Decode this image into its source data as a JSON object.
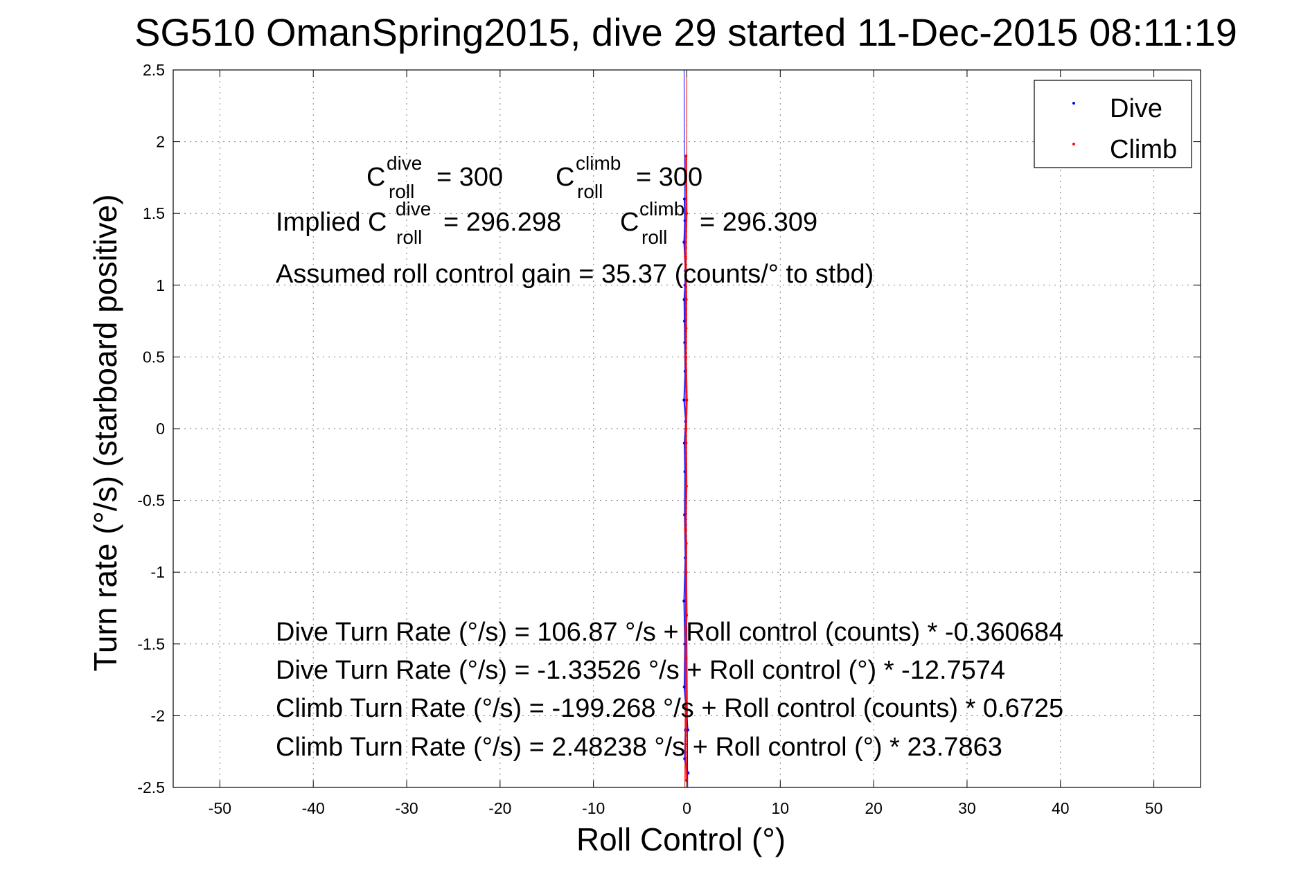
{
  "chart_data": {
    "type": "scatter",
    "title": "SG510 OmanSpring2015, dive 29 started 11-Dec-2015 08:11:19",
    "xlabel": "Roll Control (°)",
    "ylabel": "Turn rate (°/s) (starboard positive)",
    "xlim": [
      -55,
      55
    ],
    "ylim": [
      -2.5,
      2.5
    ],
    "xticks": [
      -50,
      -40,
      -30,
      -20,
      -10,
      0,
      10,
      20,
      30,
      40,
      50
    ],
    "yticks": [
      -2.5,
      -2,
      -1.5,
      -1,
      -0.5,
      0,
      0.5,
      1,
      1.5,
      2,
      2.5
    ],
    "xtick_labels": [
      "-50",
      "-40",
      "-30",
      "-20",
      "-10",
      "0",
      "10",
      "20",
      "30",
      "40",
      "50"
    ],
    "ytick_labels": [
      "-2.5",
      "-2",
      "-1.5",
      "-1",
      "-0.5",
      "0",
      "0.5",
      "1",
      "1.5",
      "2",
      "2.5"
    ],
    "grid": true,
    "legend_position": "top-right",
    "series": [
      {
        "name": "Dive",
        "color": "#0000ff",
        "x": [
          -0.25,
          -0.2,
          -0.3,
          -0.15,
          -0.28,
          -0.22,
          -0.18,
          -0.3,
          -0.12,
          -0.26,
          -0.2,
          -0.24,
          -0.16,
          -0.3,
          -0.21,
          -0.27,
          -0.14,
          -0.23,
          -0.19,
          -0.25,
          0.1,
          0.12
        ],
        "y": [
          1.6,
          1.45,
          1.3,
          1.1,
          0.9,
          0.6,
          0.4,
          0.2,
          0.05,
          -0.1,
          -0.3,
          -0.6,
          -0.9,
          -1.2,
          -1.5,
          -1.8,
          -2.1,
          -2.3,
          1.0,
          0.75,
          -2.1,
          -2.4
        ],
        "fit_line": {
          "slope": -12.7574,
          "intercept": -1.33526
        }
      },
      {
        "name": "Climb",
        "color": "#ff0000",
        "x": [
          -0.1,
          -0.05,
          -0.15,
          -0.08,
          -0.12,
          -0.02,
          -0.1,
          -0.06,
          -0.14,
          -0.09,
          -0.04,
          -0.11,
          -0.07,
          -0.13,
          -0.03,
          -0.1,
          -0.08,
          -0.12,
          -0.06,
          -0.1
        ],
        "y": [
          1.9,
          1.5,
          1.2,
          0.9,
          0.5,
          0.2,
          -0.1,
          -0.4,
          -0.7,
          -1.0,
          -1.3,
          -1.6,
          -1.9,
          -2.2,
          -2.45,
          0.0,
          -0.8,
          -1.4,
          -2.0,
          0.7
        ],
        "fit_line": {
          "slope": 23.7863,
          "intercept": 2.48238
        }
      }
    ],
    "annotations": {
      "c_roll": {
        "c_letter": "C",
        "sup_dive": "dive",
        "sup_climb": "climb",
        "sub": "roll",
        "dive_value": "= 300",
        "climb_value": "= 300",
        "implied_prefix": "Implied C",
        "implied_dive_value": "= 296.298",
        "implied_climb_value": "= 296.309"
      },
      "gain": "Assumed roll control gain = 35.37 (counts/° to stbd)",
      "fits": [
        "Dive Turn Rate (°/s) = 106.87 °/s + Roll control (counts) * -0.360684",
        "Dive Turn Rate (°/s) = -1.33526 °/s + Roll control (°) * -12.7574",
        "Climb Turn Rate (°/s) = -199.268 °/s + Roll control (counts) * 0.6725",
        "Climb Turn Rate (°/s) = 2.48238 °/s + Roll control (°) * 23.7863"
      ]
    }
  }
}
